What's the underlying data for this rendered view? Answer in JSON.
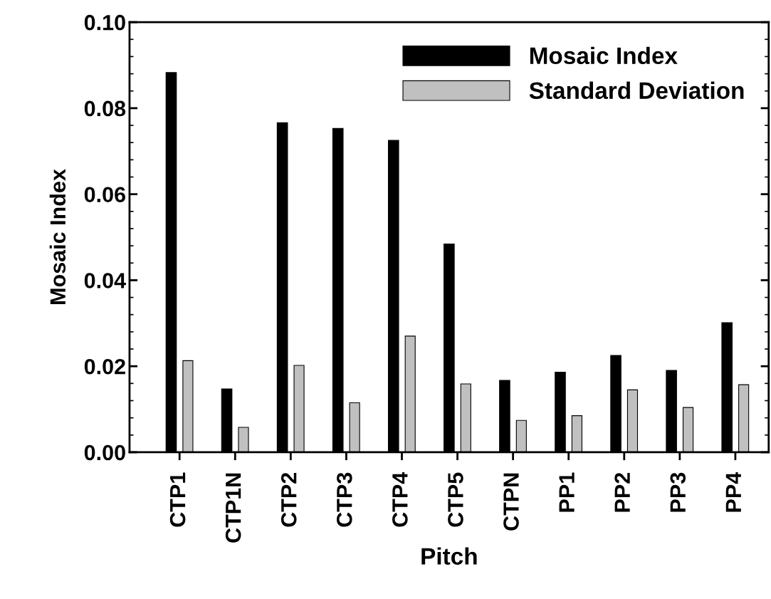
{
  "chart_data": {
    "type": "bar",
    "xlabel": "Pitch",
    "ylabel": "Mosaic Index",
    "categories": [
      "CTP1",
      "CTP1N",
      "CTP2",
      "CTP3",
      "CTP4",
      "CTP5",
      "CTPN",
      "PP1",
      "PP2",
      "PP3",
      "PP4"
    ],
    "series": [
      {
        "name": "Mosaic Index",
        "color": "#000000",
        "values": [
          0.0884,
          0.0148,
          0.0767,
          0.0754,
          0.0726,
          0.0485,
          0.0168,
          0.0187,
          0.0226,
          0.0191,
          0.0302
        ]
      },
      {
        "name": "Standard Deviation",
        "color": "#c0c0c0",
        "values": [
          0.0213,
          0.0058,
          0.0202,
          0.0115,
          0.027,
          0.0159,
          0.0074,
          0.0085,
          0.0145,
          0.0104,
          0.0157
        ]
      }
    ],
    "ylim": [
      0,
      0.1
    ],
    "yticks": [
      {
        "value": 0,
        "label": "0.00"
      },
      {
        "value": 0.02,
        "label": "0.02"
      },
      {
        "value": 0.04,
        "label": "0.04"
      },
      {
        "value": 0.06,
        "label": "0.06"
      },
      {
        "value": 0.08,
        "label": "0.08"
      },
      {
        "value": 0.1,
        "label": "0.10"
      }
    ],
    "grid": false,
    "legend": "top right"
  }
}
